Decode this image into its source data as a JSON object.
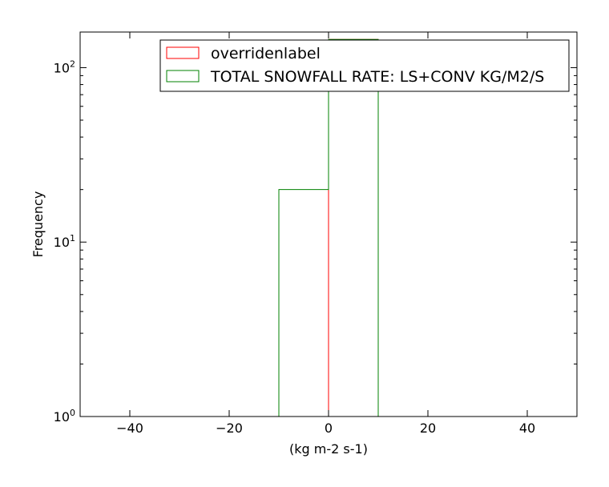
{
  "chart_data": {
    "type": "histogram",
    "title": "",
    "xlabel": "(kg m-2 s-1)",
    "ylabel": "Frequency",
    "xlim": [
      -50,
      50
    ],
    "ylim": [
      1,
      160
    ],
    "yscale": "log",
    "xticks": [
      -40,
      -20,
      0,
      20,
      40
    ],
    "xtick_labels": [
      "−40",
      "−20",
      "0",
      "20",
      "40"
    ],
    "yticks": [
      1,
      10,
      100
    ],
    "ytick_labels": [
      {
        "base": "10",
        "exp": "0"
      },
      {
        "base": "10",
        "exp": "1"
      },
      {
        "base": "10",
        "exp": "2"
      }
    ],
    "grid": false,
    "legend_position": "top-right",
    "series": [
      {
        "name": "overridenlabel",
        "color": "#ff0000",
        "bin_edges": [
          0,
          10
        ],
        "counts": [
          145
        ]
      },
      {
        "name": "TOTAL SNOWFALL RATE: LS+CONV KG/M2/S",
        "color": "#008000",
        "bin_edges": [
          -10,
          0,
          10
        ],
        "counts": [
          20,
          145
        ]
      }
    ]
  }
}
